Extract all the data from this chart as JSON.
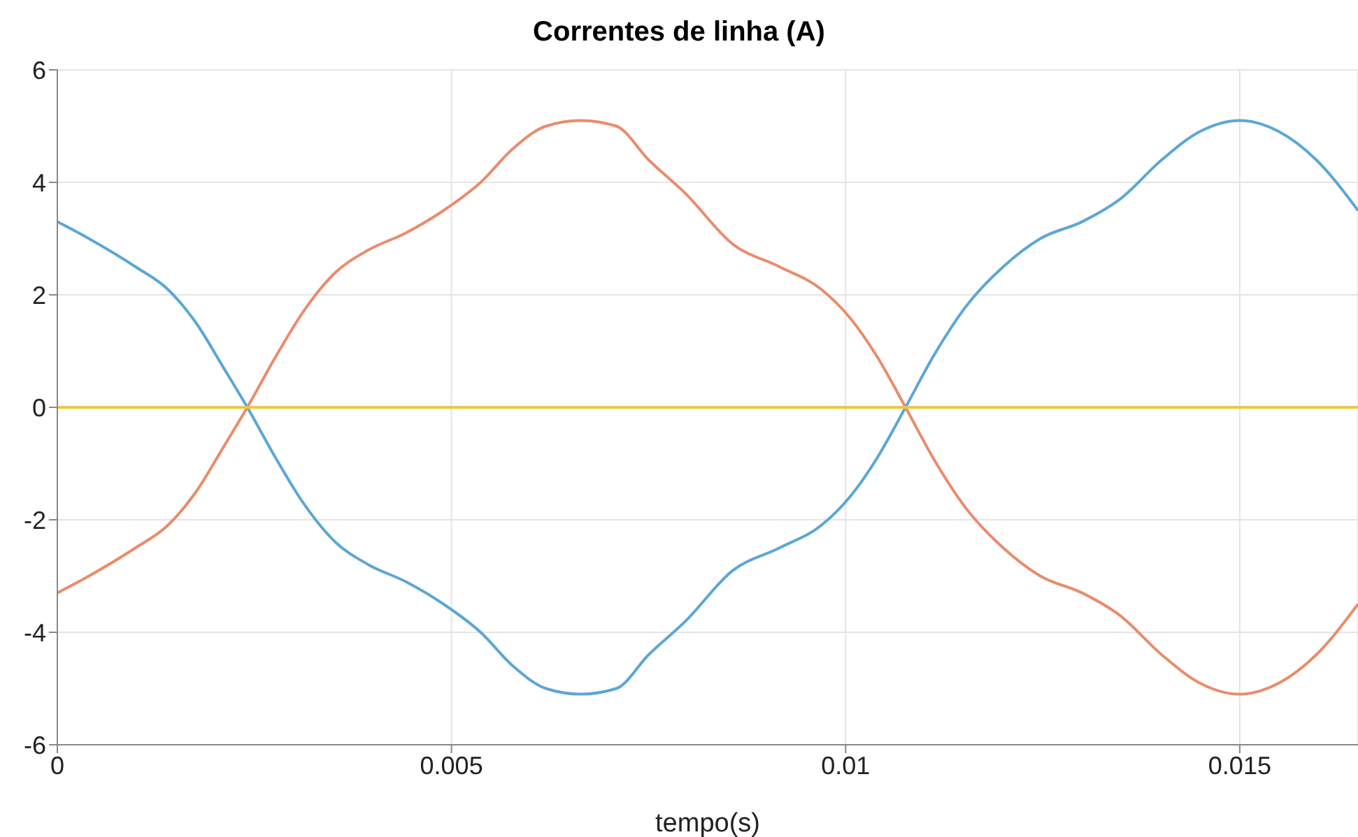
{
  "chart_data": {
    "type": "line",
    "title": "Correntes de linha (A)",
    "xlabel": "tempo(s)",
    "xlim": [
      0,
      0.0165
    ],
    "xticks": [
      0,
      0.005,
      0.01,
      0.015
    ],
    "ylim": [
      -6,
      6
    ],
    "yticks": [
      -6,
      -4,
      -2,
      0,
      2,
      4,
      6
    ],
    "grid": true,
    "line_style": "solid",
    "marker": "none",
    "x": [
      0,
      0.0004,
      0.00099,
      0.0014,
      0.00176,
      0.00211,
      0.00241,
      0.00277,
      0.00312,
      0.00353,
      0.00395,
      0.00442,
      0.0049,
      0.00537,
      0.00578,
      0.0062,
      0.00664,
      0.00709,
      0.0075,
      0.00797,
      0.00857,
      0.00916,
      0.00969,
      0.01005,
      0.0104,
      0.01076,
      0.01111,
      0.01153,
      0.012,
      0.01247,
      0.013,
      0.01348,
      0.01401,
      0.01449,
      0.015,
      0.0155,
      0.01597,
      0.0165
    ],
    "series": [
      {
        "color": "#5ba7d5",
        "values": [
          3.3,
          3.0,
          2.5,
          2.1,
          1.5,
          0.7,
          0,
          -0.9,
          -1.7,
          -2.4,
          -2.8,
          -3.1,
          -3.5,
          -4.0,
          -4.6,
          -5.0,
          -5.1,
          -5.0,
          -4.4,
          -3.8,
          -2.9,
          -2.5,
          -2.1,
          -1.6,
          -0.9,
          0,
          0.9,
          1.8,
          2.5,
          3.0,
          3.3,
          3.7,
          4.4,
          4.9,
          5.1,
          4.9,
          4.4,
          3.5
        ]
      },
      {
        "color": "#e98c6c",
        "values": [
          -3.3,
          -3.0,
          -2.5,
          -2.1,
          -1.5,
          -0.7,
          0,
          0.9,
          1.7,
          2.4,
          2.8,
          3.1,
          3.5,
          4.0,
          4.6,
          5.0,
          5.1,
          5.0,
          4.4,
          3.8,
          2.9,
          2.5,
          2.1,
          1.6,
          0.9,
          0,
          -0.9,
          -1.8,
          -2.5,
          -3.0,
          -3.3,
          -3.7,
          -4.4,
          -4.9,
          -5.1,
          -4.9,
          -4.4,
          -3.5
        ]
      },
      {
        "color": "#eec54a",
        "values": [
          0,
          0,
          0,
          0,
          0,
          0,
          0,
          0,
          0,
          0,
          0,
          0,
          0,
          0,
          0,
          0,
          0,
          0,
          0,
          0,
          0,
          0,
          0,
          0,
          0,
          0,
          0,
          0,
          0,
          0,
          0,
          0,
          0,
          0,
          0,
          0,
          0,
          0
        ]
      }
    ]
  }
}
